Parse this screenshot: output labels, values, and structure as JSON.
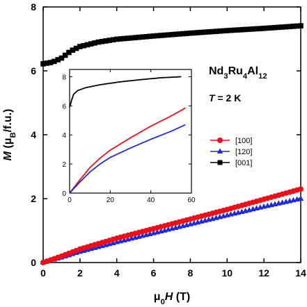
{
  "chart_data": [
    {
      "type": "scatter",
      "role": "main",
      "title": "",
      "xlabel": {
        "parts": [
          {
            "t": "μ",
            "s": "n"
          },
          {
            "t": "0",
            "s": "sub"
          },
          {
            "t": "H",
            "s": "it"
          },
          {
            "t": " (T)",
            "s": "n"
          }
        ]
      },
      "ylabel": {
        "parts": [
          {
            "t": "M",
            "s": "it"
          },
          {
            "t": " (μ",
            "s": "n"
          },
          {
            "t": "B",
            "s": "sub"
          },
          {
            "t": "/f.u.)",
            "s": "n"
          }
        ]
      },
      "xlim": [
        0,
        14
      ],
      "ylim": [
        0,
        8
      ],
      "xticks": [
        0,
        2,
        4,
        6,
        8,
        10,
        12,
        14
      ],
      "yticks": [
        0,
        2,
        4,
        6,
        8
      ],
      "grid": false,
      "legend_position": "right",
      "annotations": [
        {
          "parts": [
            {
              "t": "Nd",
              "s": "n"
            },
            {
              "t": "3",
              "s": "sub"
            },
            {
              "t": "Ru",
              "s": "n"
            },
            {
              "t": "4",
              "s": "sub"
            },
            {
              "t": "Al",
              "s": "n"
            },
            {
              "t": "12",
              "s": "sub"
            }
          ]
        },
        {
          "parts": [
            {
              "t": "T",
              "s": "it"
            },
            {
              "t": " = 2 K",
              "s": "n"
            }
          ]
        }
      ],
      "series": [
        {
          "name": "[100]",
          "color": "#e8101a",
          "marker": "circle",
          "x_range": [
            0,
            14
          ],
          "step": 0.2,
          "anchors": [
            [
              0,
              0
            ],
            [
              1,
              0.2
            ],
            [
              2,
              0.42
            ],
            [
              4,
              0.76
            ],
            [
              6,
              1.06
            ],
            [
              8,
              1.36
            ],
            [
              10,
              1.66
            ],
            [
              12,
              1.98
            ],
            [
              14,
              2.3
            ]
          ]
        },
        {
          "name": "[120]",
          "color": "#1f2ad6",
          "marker": "triangle",
          "x_range": [
            0,
            14
          ],
          "step": 0.2,
          "anchors": [
            [
              0,
              0
            ],
            [
              1,
              0.16
            ],
            [
              2,
              0.34
            ],
            [
              4,
              0.64
            ],
            [
              6,
              0.92
            ],
            [
              8,
              1.2
            ],
            [
              10,
              1.48
            ],
            [
              12,
              1.75
            ],
            [
              14,
              2.0
            ]
          ]
        },
        {
          "name": "[001]",
          "color": "#000000",
          "marker": "square",
          "x_range": [
            0,
            14
          ],
          "step": 0.2,
          "anchors": [
            [
              0,
              6.22
            ],
            [
              0.5,
              6.27
            ],
            [
              1,
              6.4
            ],
            [
              1.5,
              6.62
            ],
            [
              2,
              6.76
            ],
            [
              3,
              6.9
            ],
            [
              4,
              6.99
            ],
            [
              6,
              7.09
            ],
            [
              8,
              7.18
            ],
            [
              10,
              7.26
            ],
            [
              12,
              7.33
            ],
            [
              14,
              7.41
            ]
          ]
        }
      ]
    },
    {
      "type": "line",
      "role": "inset",
      "xlim": [
        0,
        60
      ],
      "ylim": [
        0,
        8.5
      ],
      "xticks": [
        0,
        20,
        40,
        60
      ],
      "yticks": [
        0,
        2,
        4,
        6,
        8
      ],
      "series": [
        {
          "name": "[100]",
          "color": "#e8101a",
          "anchors": [
            [
              0,
              0
            ],
            [
              5,
              0.9
            ],
            [
              10,
              1.75
            ],
            [
              15,
              2.4
            ],
            [
              20,
              2.95
            ],
            [
              30,
              3.8
            ],
            [
              40,
              4.6
            ],
            [
              50,
              5.3
            ],
            [
              57,
              5.85
            ]
          ]
        },
        {
          "name": "[120]",
          "color": "#1f2ad6",
          "anchors": [
            [
              0,
              0
            ],
            [
              5,
              0.75
            ],
            [
              10,
              1.45
            ],
            [
              15,
              2.0
            ],
            [
              20,
              2.45
            ],
            [
              30,
              3.1
            ],
            [
              40,
              3.7
            ],
            [
              50,
              4.25
            ],
            [
              57,
              4.7
            ]
          ]
        },
        {
          "name": "[001]",
          "color": "#000000",
          "anchors": [
            [
              0,
              5.9
            ],
            [
              0.5,
              6.15
            ],
            [
              1,
              6.4
            ],
            [
              2,
              6.8
            ],
            [
              4,
              7.05
            ],
            [
              8,
              7.25
            ],
            [
              15,
              7.45
            ],
            [
              25,
              7.65
            ],
            [
              35,
              7.8
            ],
            [
              45,
              7.93
            ],
            [
              55,
              8.0
            ]
          ]
        }
      ]
    }
  ]
}
